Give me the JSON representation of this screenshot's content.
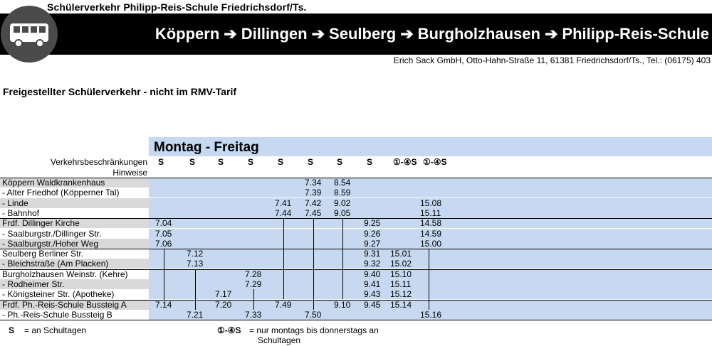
{
  "header": {
    "title": "Schülerverkehr Philipp-Reis-Schule Friedrichsdorf/Ts.",
    "route": [
      "Köppern",
      "Dillingen",
      "Seulberg",
      "Burgholzhausen",
      "Philipp-Reis-Schule"
    ],
    "arrow": "➔",
    "address": "Erich Sack GmbH, Otto-Hahn-Straße 11, 61381 Friedrichsdorf/Ts., Tel.: (06175) 403",
    "subtitle": "Freigestellter Schülerverkehr - nicht im RMV-Tarif",
    "icon": "bus-icon"
  },
  "timetable": {
    "day_title": "Montag - Freitag",
    "restrictions_label": "Verkehrsbeschränkungen",
    "notes_label": "Hinweise",
    "restrictions": [
      "S",
      "S",
      "S",
      "S",
      "S",
      "S",
      "S",
      "S",
      "①-④S",
      "①-④S"
    ],
    "rows": [
      {
        "stop": "Köppern Waldkrankenhaus",
        "times": [
          "",
          "",
          "",
          "",
          "",
          "7.34",
          "8.54",
          "",
          "",
          ""
        ]
      },
      {
        "stop": "- Alter Friedhof (Köpperner Tal)",
        "times": [
          "",
          "",
          "",
          "",
          "",
          "7.39",
          "8.59",
          "",
          "",
          ""
        ]
      },
      {
        "stop": "- Linde",
        "times": [
          "",
          "",
          "",
          "",
          "7.41",
          "7.42",
          "9.02",
          "",
          "",
          "15.08"
        ]
      },
      {
        "stop": "- Bahnhof",
        "times": [
          "",
          "",
          "",
          "",
          "7.44",
          "7.45",
          "9.05",
          "",
          "",
          "15.11"
        ]
      },
      {
        "stop": "Frdf. Dillinger Kirche",
        "times": [
          "7.04",
          "",
          "",
          "",
          "",
          "",
          "",
          "9.25",
          "",
          "14.58"
        ]
      },
      {
        "stop": "- Saalburgstr./Dillinger Str.",
        "times": [
          "7.05",
          "",
          "",
          "",
          "",
          "",
          "",
          "9.26",
          "",
          "14.59"
        ]
      },
      {
        "stop": "- Saalburgstr./Hoher Weg",
        "times": [
          "7.06",
          "",
          "",
          "",
          "",
          "",
          "",
          "9.27",
          "",
          "15.00"
        ]
      },
      {
        "stop": "Seulberg Berliner Str.",
        "times": [
          "",
          "7.12",
          "",
          "",
          "",
          "",
          "",
          "9.31",
          "15.01",
          ""
        ]
      },
      {
        "stop": "- Bleichstraße (Am Placken)",
        "times": [
          "",
          "7.13",
          "",
          "",
          "",
          "",
          "",
          "9.32",
          "15.02",
          ""
        ]
      },
      {
        "stop": "Burgholzhausen Weinstr. (Kehre)",
        "times": [
          "",
          "",
          "",
          "7.28",
          "",
          "",
          "",
          "9.40",
          "15.10",
          ""
        ]
      },
      {
        "stop": "- Rodheimer Str.",
        "times": [
          "",
          "",
          "",
          "7.29",
          "",
          "",
          "",
          "9.41",
          "15.11",
          ""
        ]
      },
      {
        "stop": "- Königsteiner Str. (Apotheke)",
        "times": [
          "",
          "",
          "7.17",
          "",
          "",
          "",
          "",
          "9.43",
          "15.12",
          ""
        ]
      },
      {
        "stop": "Frdf. Ph.-Reis-Schule Bussteig A",
        "times": [
          "7.14",
          "",
          "7.20",
          "",
          "7.49",
          "",
          "9.10",
          "9.45",
          "15.14",
          ""
        ]
      },
      {
        "stop": "- Ph.-Reis-Schule Bussteig B",
        "times": [
          "",
          "7.21",
          "",
          "7.33",
          "",
          "7.50",
          "",
          "",
          "",
          "15.16"
        ]
      }
    ]
  },
  "legend": {
    "s_symbol": "S",
    "s_text": "= an Schultagen",
    "mt_symbol": "①-④S",
    "mt_text_1": "= nur montags bis donnerstags an",
    "mt_text_2": "Schultagen"
  }
}
